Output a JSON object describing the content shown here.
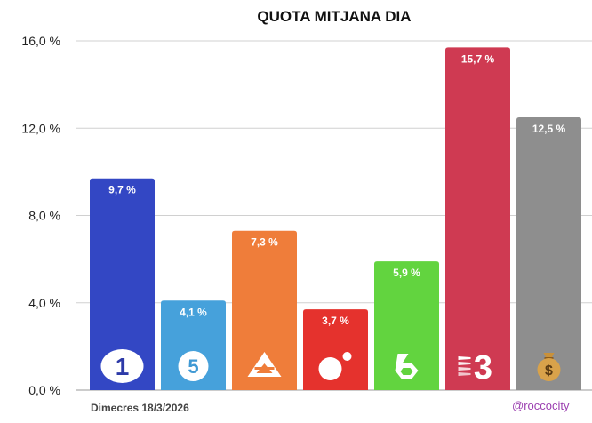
{
  "chart_data": {
    "type": "bar",
    "title": "QUOTA MITJANA DIA",
    "categories": [
      "La 1",
      "Telecinco",
      "Antena 3",
      "Cuatro",
      "La Sexta",
      "TV3",
      "Altres"
    ],
    "values": [
      9.7,
      4.1,
      7.3,
      3.7,
      5.9,
      15.7,
      12.5
    ],
    "value_labels": [
      "9,7 %",
      "4,1 %",
      "7,3 %",
      "3,7 %",
      "5,9 %",
      "15,7 %",
      "12,5 %"
    ],
    "colors": [
      "#3347c4",
      "#46a1db",
      "#ef7d3a",
      "#e5322d",
      "#62d43f",
      "#cf3a52",
      "#8e8e8e"
    ],
    "icons": [
      "la1-logo-icon",
      "telecinco-logo-icon",
      "antena3-logo-icon",
      "cuatro-logo-icon",
      "lasexta-logo-icon",
      "tv3-logo-icon",
      "money-bag-icon"
    ],
    "ylim": [
      0,
      16
    ],
    "yticks": [
      0,
      4,
      8,
      12,
      16
    ],
    "ytick_labels": [
      "0,0 %",
      "4,0 %",
      "8,0 %",
      "12,0 %",
      "16,0 %"
    ],
    "grid": true,
    "xlabel": "",
    "ylabel": ""
  },
  "footer": {
    "date": "Dimecres 18/3/2026",
    "handle": "@roccocity"
  }
}
